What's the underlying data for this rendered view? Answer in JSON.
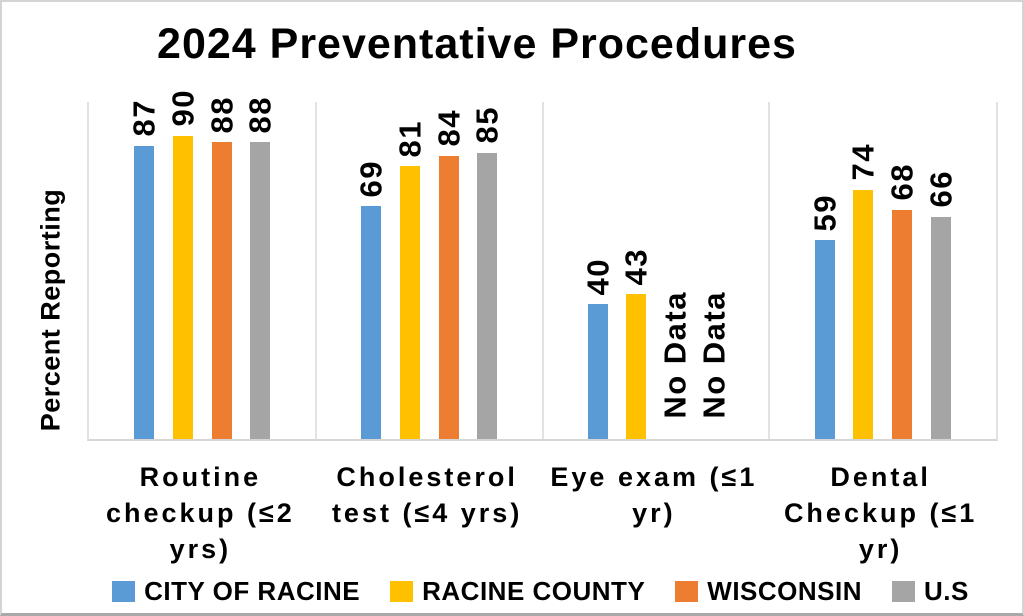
{
  "chart_data": {
    "type": "bar",
    "title": "2024 Preventative Procedures",
    "xlabel": "",
    "ylabel": "Percent Reporting",
    "ylim": [
      0,
      100
    ],
    "y_axis_tick_labels_visible": false,
    "grid": "vertical category separator lines only",
    "legend_position": "bottom",
    "bar_value_labels": "rotated 90deg, bold, above bars",
    "no_data_text": "No Data",
    "categories": [
      {
        "label": "Routine checkup (≤2 yrs)",
        "lines": [
          "Routine",
          "checkup (≤2",
          "yrs)"
        ]
      },
      {
        "label": "Cholesterol test (≤4 yrs)",
        "lines": [
          "Cholesterol",
          "test (≤4 yrs)"
        ]
      },
      {
        "label": "Eye exam (≤1 yr)",
        "lines": [
          "Eye exam (≤1",
          "yr)"
        ]
      },
      {
        "label": "Dental Checkup (≤1 yr)",
        "lines": [
          "Dental",
          "Checkup (≤1",
          "yr)"
        ]
      }
    ],
    "series": [
      {
        "name": "CITY OF RACINE",
        "color": "#5B9BD5",
        "values": [
          87,
          69,
          40,
          59
        ]
      },
      {
        "name": "RACINE COUNTY",
        "color": "#FFC000",
        "values": [
          90,
          81,
          43,
          74
        ]
      },
      {
        "name": "WISCONSIN",
        "color": "#ED7D31",
        "values": [
          88,
          84,
          null,
          68
        ]
      },
      {
        "name": "U.S",
        "color": "#A5A5A5",
        "values": [
          88,
          85,
          null,
          66
        ]
      }
    ],
    "colors": {
      "text": "#000000",
      "gridline": "#E2E2E2",
      "axis_line": "#D6D6D6",
      "background": "#FFFFFF",
      "outer_border": "#D4D4D4"
    }
  }
}
